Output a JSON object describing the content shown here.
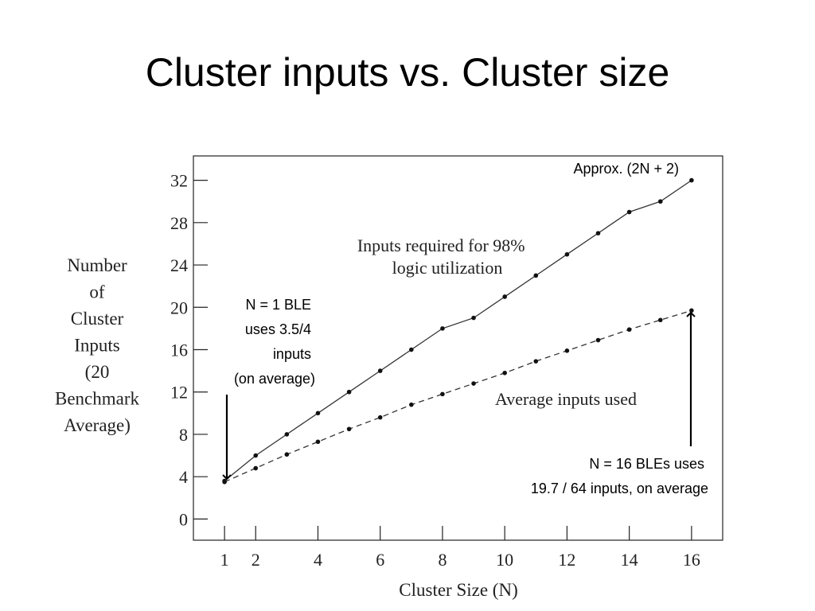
{
  "slide": {
    "title": "Cluster inputs vs. Cluster size"
  },
  "chart_data": {
    "type": "line",
    "xlabel": "Cluster Size (N)",
    "ylabel_lines": [
      "Number",
      "of",
      "Cluster",
      "Inputs",
      "(20",
      "Benchmark",
      "Average)"
    ],
    "x_ticks": [
      1,
      2,
      4,
      6,
      8,
      10,
      12,
      14,
      16
    ],
    "y_ticks": [
      0,
      4,
      8,
      12,
      16,
      20,
      24,
      28,
      32
    ],
    "xlim": [
      0,
      17
    ],
    "ylim": [
      -2,
      34.3
    ],
    "series": [
      {
        "name": "Inputs required for 98% logic utilization",
        "style": "solid",
        "x": [
          1,
          2,
          3,
          4,
          5,
          6,
          7,
          8,
          9,
          10,
          11,
          12,
          13,
          14,
          15,
          16
        ],
        "values": [
          3.6,
          6,
          8,
          10,
          12,
          14,
          16,
          18,
          19,
          21,
          23,
          25,
          27,
          29,
          30,
          32
        ]
      },
      {
        "name": "Average inputs used",
        "style": "dashed",
        "x": [
          1,
          2,
          3,
          4,
          5,
          6,
          7,
          8,
          9,
          10,
          11,
          12,
          13,
          14,
          15,
          16
        ],
        "values": [
          3.5,
          4.8,
          6.1,
          7.3,
          8.5,
          9.6,
          10.8,
          11.8,
          12.8,
          13.8,
          14.9,
          15.9,
          16.9,
          17.9,
          18.8,
          19.7
        ]
      }
    ],
    "labels": {
      "solid_line": [
        "Inputs required for 98%",
        "logic utilization"
      ],
      "dashed_line": "Average inputs used"
    },
    "annotations": {
      "approx": "Approx. (2N + 2)",
      "n1": [
        "N = 1 BLE",
        "uses 3.5/4",
        "inputs",
        "(on average)"
      ],
      "n16": [
        "N = 16 BLEs uses",
        "19.7 / 64 inputs, on average"
      ]
    }
  }
}
